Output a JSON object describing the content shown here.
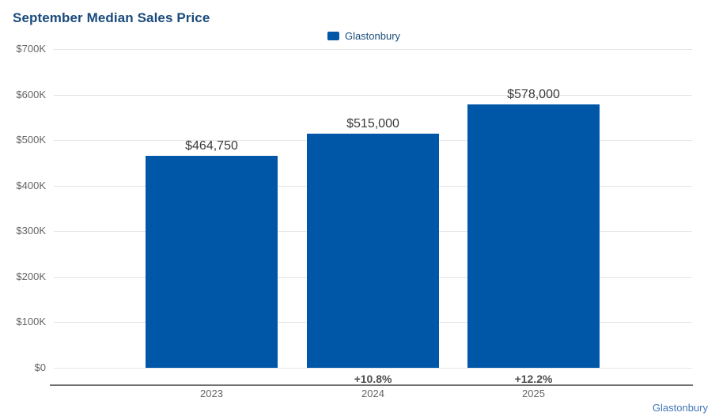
{
  "header": {
    "title": "September Median Sales Price"
  },
  "legend": {
    "label": "Glastonbury"
  },
  "footer": {
    "label": "Glastonbury"
  },
  "colors": {
    "bar": "#0057A8",
    "title": "#1A4B7D",
    "legend_text": "#1A4B7D",
    "axis_text": "#666666",
    "value_label": "#3B3B3B",
    "pct_label": "#4F4F4F",
    "gridline": "#E4E4E4",
    "axis_line": "#707070",
    "footer_text": "#4377B8"
  },
  "chart_data": {
    "type": "bar",
    "title": "September Median Sales Price",
    "categories": [
      "2023",
      "2024",
      "2025"
    ],
    "series": [
      {
        "name": "Glastonbury",
        "values": [
          464750,
          515000,
          578000
        ]
      }
    ],
    "value_labels": [
      "$464,750",
      "$515,000",
      "$578,000"
    ],
    "change_labels": [
      null,
      "+10.8%",
      "+12.2%"
    ],
    "ytick_values": [
      0,
      100000,
      200000,
      300000,
      400000,
      500000,
      600000,
      700000
    ],
    "ytick_labels": [
      "$0",
      "$100K",
      "$200K",
      "$300K",
      "$400K",
      "$500K",
      "$600K",
      "$700K"
    ],
    "ylim": [
      0,
      700000
    ],
    "xlabel": "",
    "ylabel": "",
    "grid": true,
    "legend_position": "top-center"
  }
}
